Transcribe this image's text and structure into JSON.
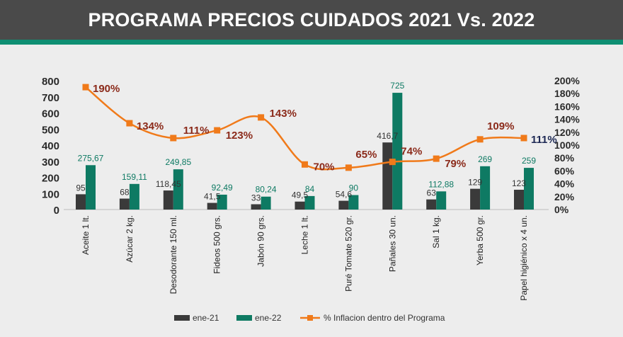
{
  "header": {
    "title": "PROGRAMA PRECIOS CUIDADOS 2021 Vs. 2022"
  },
  "colors": {
    "ene21": "#3a3a3a",
    "ene22": "#0e7a63",
    "line": "#f07a1a",
    "pct_label": "#8b2a1a",
    "pct_label_last": "#1f2a55",
    "header_bg": "#4a4a4a",
    "stripe": "#0f8f73",
    "background": "#ededed"
  },
  "chart_data": {
    "type": "bar",
    "categories": [
      "Aceite 1 lt.",
      "Azúcar 2 kg.",
      "Desodorante 150 ml.",
      "Fideos 500 grs.",
      "Jabón 90 grs.",
      "Leche 1 lt.",
      "Puré Tomate 520 gr.",
      "Pañales 30 un.",
      "Sal 1 kg.",
      "Yerba 500 gr.",
      "Papel higiénico x 4 un."
    ],
    "series": [
      {
        "name": "ene-21",
        "values": [
          95,
          68,
          118.45,
          41.5,
          33,
          49.5,
          54.6,
          416.7,
          63,
          129,
          123
        ],
        "labels": [
          "95",
          "68",
          "118,45",
          "41,5",
          "33",
          "49,5",
          "54,6",
          "416,7",
          "63",
          "129",
          "123"
        ]
      },
      {
        "name": "ene-22",
        "values": [
          275.67,
          159.11,
          249.85,
          92.49,
          80.24,
          84,
          90,
          725,
          112.88,
          269,
          259
        ],
        "labels": [
          "275,67",
          "159,11",
          "249,85",
          "92,49",
          "80,24",
          "84",
          "90",
          "725",
          "112,88",
          "269",
          "259"
        ]
      },
      {
        "name": "% Inflacion dentro del Programa",
        "type": "line",
        "axis": "right",
        "values": [
          190,
          134,
          111,
          123,
          143,
          70,
          65,
          74,
          79,
          109,
          111
        ],
        "labels": [
          "190%",
          "134%",
          "111%",
          "123%",
          "143%",
          "70%",
          "65%",
          "74%",
          "79%",
          "109%",
          "111%"
        ]
      }
    ],
    "y_left": {
      "ylim": [
        0,
        800
      ],
      "ticks": [
        "0",
        "100",
        "200",
        "300",
        "400",
        "500",
        "600",
        "700",
        "800"
      ]
    },
    "y_right": {
      "ylim": [
        0,
        200
      ],
      "ticks": [
        "0%",
        "20%",
        "40%",
        "60%",
        "80%",
        "100%",
        "120%",
        "140%",
        "160%",
        "180%",
        "200%"
      ]
    },
    "legend": {
      "position": "bottom",
      "entries": [
        "ene-21",
        "ene-22",
        "% Inflacion dentro del Programa"
      ]
    },
    "grid": false
  }
}
